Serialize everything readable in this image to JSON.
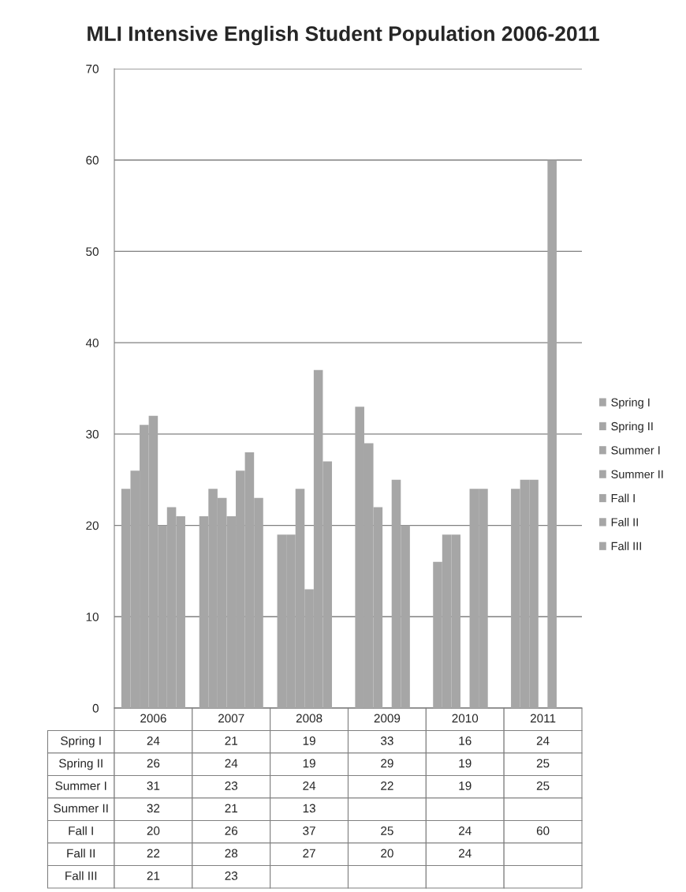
{
  "chart_data": {
    "type": "bar",
    "title": "MLI Intensive English Student Population 2006-2011",
    "categories": [
      "2006",
      "2007",
      "2008",
      "2009",
      "2010",
      "2011"
    ],
    "series": [
      {
        "name": "Spring I",
        "color": "#a6a6a6",
        "values": [
          24,
          21,
          19,
          33,
          16,
          24
        ]
      },
      {
        "name": "Spring II",
        "color": "#a6a6a6",
        "values": [
          26,
          24,
          19,
          29,
          19,
          25
        ]
      },
      {
        "name": "Summer I",
        "color": "#a6a6a6",
        "values": [
          31,
          23,
          24,
          22,
          19,
          25
        ]
      },
      {
        "name": "Summer II",
        "color": "#a6a6a6",
        "values": [
          32,
          21,
          13,
          null,
          null,
          null
        ]
      },
      {
        "name": "Fall I",
        "color": "#a6a6a6",
        "values": [
          20,
          26,
          37,
          25,
          24,
          60
        ]
      },
      {
        "name": "Fall II",
        "color": "#a6a6a6",
        "values": [
          22,
          28,
          27,
          20,
          24,
          null
        ]
      },
      {
        "name": "Fall III",
        "color": "#a6a6a6",
        "values": [
          21,
          23,
          null,
          null,
          null,
          null
        ]
      }
    ],
    "ylim": [
      0,
      70
    ],
    "yticks": [
      0,
      10,
      20,
      30,
      40,
      50,
      60,
      70
    ],
    "grid": "y",
    "legend": "right",
    "data_labels": true
  }
}
